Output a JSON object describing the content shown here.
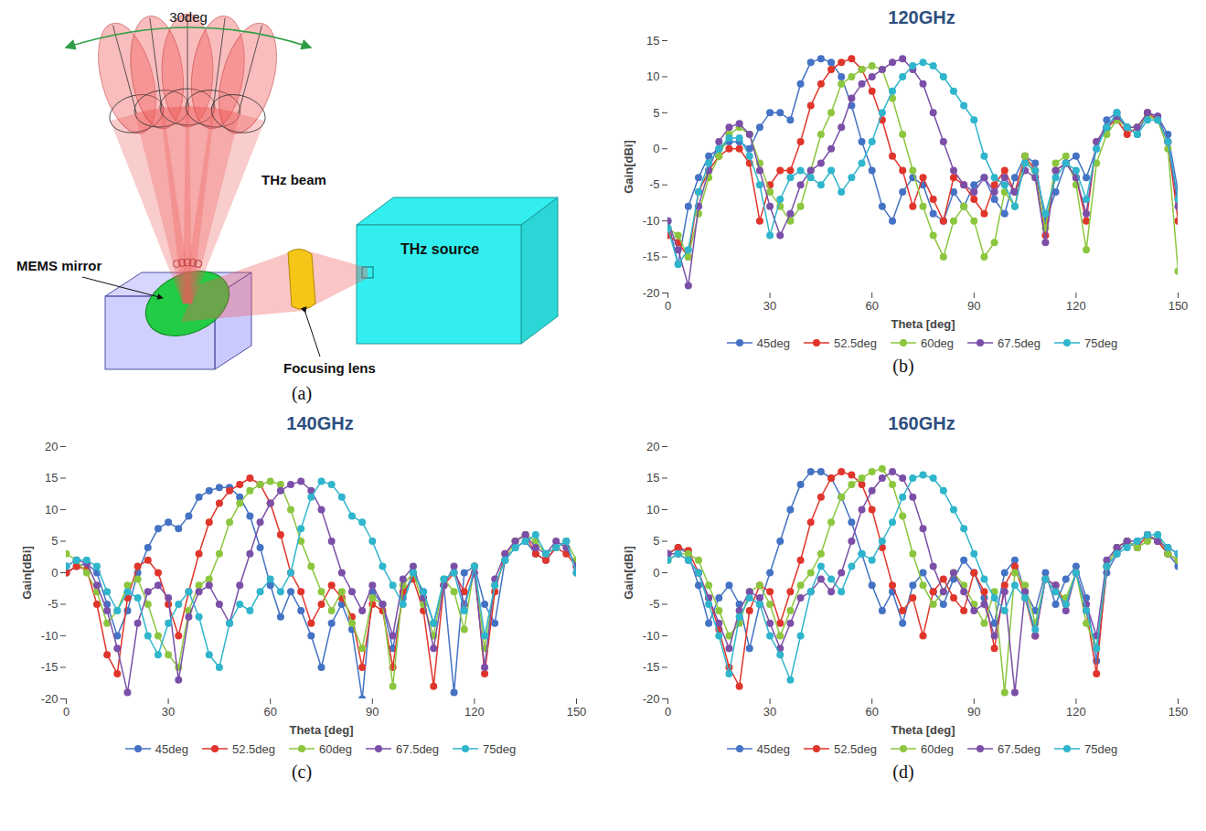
{
  "diagram": {
    "panel_label": "(a)",
    "angle_label": "30deg",
    "labels": {
      "beam": "THz beam",
      "source": "THz source",
      "mirror": "MEMS mirror",
      "lens": "Focusing lens"
    }
  },
  "chart_data": [
    {
      "type": "line",
      "panel_label": "(b)",
      "title": "120GHz",
      "x_label": "Theta [deg]",
      "y_label": "Gain[dBi]",
      "xlim": [
        0,
        150
      ],
      "xticks": [
        0,
        30,
        60,
        90,
        120,
        150
      ],
      "ylim": [
        -20,
        15
      ],
      "yticks": [
        -20,
        -15,
        -10,
        -5,
        0,
        5,
        10,
        15
      ],
      "grid": false,
      "legend": "bottom",
      "marker": "circle",
      "line_style": "solid",
      "x": [
        0,
        3,
        6,
        9,
        12,
        15,
        18,
        21,
        24,
        27,
        30,
        33,
        36,
        39,
        42,
        45,
        48,
        51,
        54,
        57,
        60,
        63,
        66,
        69,
        72,
        75,
        78,
        81,
        84,
        87,
        90,
        93,
        96,
        99,
        102,
        105,
        108,
        111,
        114,
        117,
        120,
        123,
        126,
        129,
        132,
        135,
        138,
        141,
        144,
        147,
        150
      ],
      "series": [
        {
          "name": "45deg",
          "color": "#4472c4",
          "values": [
            -10,
            -16,
            -8,
            -4,
            -1,
            0,
            1,
            1,
            0,
            3,
            5,
            5,
            4,
            9,
            12,
            12.5,
            12,
            10,
            6,
            1,
            -3,
            -8,
            -10,
            -6,
            -4,
            -5,
            -9,
            -10,
            -6,
            -8,
            -5,
            -4,
            -7,
            -9,
            -4,
            -1,
            -2,
            -10,
            -6,
            -2,
            -1,
            -4,
            0,
            4,
            5,
            3,
            2,
            5,
            4.5,
            2,
            -6
          ]
        },
        {
          "name": "52.5deg",
          "color": "#e0352b",
          "values": [
            -12,
            -13,
            -15,
            -6,
            -3,
            -1,
            0,
            0,
            -2,
            -10,
            -5,
            -3,
            -3,
            1,
            6,
            9,
            11,
            12,
            12.5,
            11,
            8,
            4,
            -1,
            -3,
            -8,
            -4,
            -7,
            -10,
            -4,
            -5,
            -7,
            -9,
            -5,
            -3,
            -6,
            -1,
            -3,
            -12,
            -3,
            -2,
            -4,
            -10,
            1,
            3,
            4,
            2,
            3,
            5,
            4,
            1,
            -10
          ]
        },
        {
          "name": "60deg",
          "color": "#8cc63e",
          "values": [
            -11,
            -12,
            -15,
            -9,
            -4,
            -1,
            2,
            3,
            2,
            -2,
            -6,
            -8,
            -10,
            -8,
            -3,
            2,
            5,
            9,
            10,
            11,
            11.5,
            11,
            7,
            2,
            -3,
            -8,
            -12,
            -15,
            -10,
            -8,
            -10,
            -15,
            -13,
            -6,
            -8,
            -1,
            -4,
            -11,
            -2,
            -1,
            -5,
            -14,
            -2,
            2,
            4,
            3,
            3,
            4.5,
            4,
            0,
            -17
          ]
        },
        {
          "name": "67.5deg",
          "color": "#7b4fa8",
          "values": [
            -10,
            -14,
            -19,
            -8,
            -3,
            1,
            3,
            3.5,
            2,
            -3,
            -8,
            -12,
            -9,
            -5,
            -3,
            -2,
            0,
            3,
            7,
            9,
            10,
            11,
            12,
            12.5,
            11,
            9,
            5,
            1,
            -3,
            -5,
            -6,
            -4,
            -6,
            -4,
            -6,
            -3,
            -4,
            -13,
            -3,
            -2,
            -4,
            -9,
            1,
            3,
            4.5,
            3,
            3,
            5,
            4.5,
            1,
            -8
          ]
        },
        {
          "name": "75deg",
          "color": "#2fb5cc",
          "values": [
            -11,
            -16,
            -14,
            -6,
            -2,
            0,
            1.5,
            1.5,
            -1,
            -5,
            -12,
            -7,
            -4,
            -3,
            -4,
            -5,
            -3,
            -6,
            -4,
            -2,
            1,
            5,
            8,
            10,
            11.5,
            12,
            11.5,
            10,
            8,
            6,
            4,
            -1,
            -4,
            -5,
            -8,
            -2,
            -3,
            -9,
            -4,
            -2,
            -3,
            -7,
            0,
            3,
            5,
            3,
            2,
            4,
            4,
            1,
            -7
          ]
        }
      ]
    },
    {
      "type": "line",
      "panel_label": "(c)",
      "title": "140GHz",
      "x_label": "Theta [deg]",
      "y_label": "Gain[dBi]",
      "xlim": [
        0,
        150
      ],
      "xticks": [
        0,
        30,
        60,
        90,
        120,
        150
      ],
      "ylim": [
        -20,
        20
      ],
      "yticks": [
        -20,
        -15,
        -10,
        -5,
        0,
        5,
        10,
        15,
        20
      ],
      "grid": false,
      "legend": "bottom",
      "marker": "circle",
      "line_style": "solid",
      "x": [
        0,
        3,
        6,
        9,
        12,
        15,
        18,
        21,
        24,
        27,
        30,
        33,
        36,
        39,
        42,
        45,
        48,
        51,
        54,
        57,
        60,
        63,
        66,
        69,
        72,
        75,
        78,
        81,
        84,
        87,
        90,
        93,
        96,
        99,
        102,
        105,
        108,
        111,
        114,
        117,
        120,
        123,
        126,
        129,
        132,
        135,
        138,
        141,
        144,
        147,
        150
      ],
      "series": [
        {
          "name": "45deg",
          "color": "#4472c4",
          "values": [
            0,
            1,
            1.5,
            0,
            -5,
            -10,
            -6,
            0,
            4,
            7,
            8,
            7,
            9,
            12,
            13,
            13.5,
            13.5,
            12,
            9,
            4,
            -2,
            -7,
            -3,
            -6,
            -10,
            -15,
            -8,
            -5,
            -9,
            -20,
            -3,
            -5,
            -12,
            -4,
            0,
            -3,
            -8,
            -2,
            -19,
            0,
            1,
            -5,
            -8,
            2,
            4,
            5,
            3,
            2,
            4,
            5,
            0
          ]
        },
        {
          "name": "52.5deg",
          "color": "#e0352b",
          "values": [
            0,
            1,
            0.5,
            -5,
            -13,
            -16,
            -4,
            1,
            2,
            0,
            -5,
            -10,
            -3,
            3,
            8,
            11,
            13,
            14,
            15,
            14,
            11,
            6,
            0,
            -3,
            -8,
            -5,
            -2,
            -4,
            -7,
            -15,
            -5,
            -6,
            -15,
            -3,
            -1,
            -6,
            -18,
            -2,
            0,
            -3,
            1,
            -16,
            -3,
            3,
            5,
            6,
            3,
            2,
            4,
            3,
            1
          ]
        },
        {
          "name": "60deg",
          "color": "#8cc63e",
          "values": [
            3,
            2,
            0,
            -3,
            -8,
            -6,
            -2,
            -1,
            -5,
            -10,
            -13,
            -15,
            -6,
            -2,
            -1,
            3,
            8,
            11,
            13,
            14,
            14.5,
            14,
            10,
            5,
            1,
            -3,
            -6,
            -3,
            -8,
            -12,
            -4,
            -5,
            -18,
            -2,
            0,
            -5,
            -10,
            -1,
            -3,
            -9,
            1,
            -12,
            -2,
            2,
            5,
            6,
            5,
            3,
            4,
            5,
            2
          ]
        },
        {
          "name": "67.5deg",
          "color": "#7b4fa8",
          "values": [
            1,
            2,
            1.5,
            -2,
            -6,
            -12,
            -19,
            -8,
            -3,
            -2,
            -4,
            -17,
            -7,
            -3,
            -2,
            -5,
            -8,
            -2,
            3,
            8,
            11,
            13,
            14,
            14.5,
            13,
            10,
            5,
            0,
            -3,
            -6,
            -2,
            -5,
            -10,
            -1,
            1,
            -4,
            -12,
            -2,
            1,
            -5,
            0,
            -15,
            -1,
            3,
            5,
            6,
            4,
            3,
            5,
            4,
            1
          ]
        },
        {
          "name": "75deg",
          "color": "#2fb5cc",
          "values": [
            1,
            2,
            2,
            1,
            -3,
            -6,
            -3,
            -4,
            -10,
            -13,
            -8,
            -5,
            -3,
            -7,
            -13,
            -15,
            -8,
            -5,
            -6,
            -3,
            -1,
            -3,
            0,
            7,
            12,
            14.5,
            14,
            12,
            9,
            8,
            5,
            1,
            -2,
            -5,
            0,
            -3,
            -8,
            -1,
            0,
            -6,
            1,
            -10,
            -2,
            2,
            4,
            5,
            6,
            3,
            4,
            5,
            0
          ]
        }
      ]
    },
    {
      "type": "line",
      "panel_label": "(d)",
      "title": "160GHz",
      "x_label": "Theta [deg]",
      "y_label": "Gain[dBi]",
      "xlim": [
        0,
        150
      ],
      "xticks": [
        0,
        30,
        60,
        90,
        120,
        150
      ],
      "ylim": [
        -20,
        20
      ],
      "yticks": [
        -20,
        -15,
        -10,
        -5,
        0,
        5,
        10,
        15,
        20
      ],
      "grid": false,
      "legend": "bottom",
      "marker": "circle",
      "line_style": "solid",
      "x": [
        0,
        3,
        6,
        9,
        12,
        15,
        18,
        21,
        24,
        27,
        30,
        33,
        36,
        39,
        42,
        45,
        48,
        51,
        54,
        57,
        60,
        63,
        66,
        69,
        72,
        75,
        78,
        81,
        84,
        87,
        90,
        93,
        96,
        99,
        102,
        105,
        108,
        111,
        114,
        117,
        120,
        123,
        126,
        129,
        132,
        135,
        138,
        141,
        144,
        147,
        150
      ],
      "series": [
        {
          "name": "45deg",
          "color": "#4472c4",
          "values": [
            3,
            4,
            3,
            -2,
            -8,
            -4,
            -2,
            -5,
            -12,
            -5,
            0,
            5,
            10,
            14,
            16,
            16,
            15,
            12,
            8,
            3,
            -2,
            -6,
            -3,
            -8,
            -2,
            0,
            -3,
            -5,
            -1,
            2,
            0,
            -4,
            -8,
            0,
            2,
            -3,
            -6,
            0,
            -5,
            -1,
            1,
            -4,
            -14,
            0,
            3,
            5,
            4,
            6,
            5,
            3,
            1
          ]
        },
        {
          "name": "52.5deg",
          "color": "#e0352b",
          "values": [
            3,
            4,
            3.5,
            0,
            -4,
            -9,
            -15,
            -18,
            -6,
            -2,
            -3,
            -8,
            -3,
            2,
            8,
            12,
            15,
            16,
            15.5,
            14,
            10,
            4,
            -2,
            -6,
            -4,
            -10,
            -3,
            -1,
            -4,
            -6,
            0,
            -3,
            -12,
            -2,
            1,
            -4,
            -10,
            -1,
            -2,
            -5,
            0,
            -6,
            -16,
            1,
            4,
            5,
            4,
            6,
            5,
            3,
            2
          ]
        },
        {
          "name": "60deg",
          "color": "#8cc63e",
          "values": [
            2,
            3,
            3,
            2,
            -2,
            -6,
            -10,
            -8,
            -3,
            -2,
            -5,
            -10,
            -6,
            -2,
            0,
            3,
            8,
            12,
            14,
            15,
            16,
            16.5,
            14,
            9,
            3,
            -2,
            -5,
            -3,
            0,
            -2,
            -5,
            -8,
            -3,
            -19,
            0,
            -2,
            -8,
            -1,
            -3,
            -4,
            0,
            -8,
            -12,
            1,
            4,
            5,
            4,
            5,
            6,
            3,
            2
          ]
        },
        {
          "name": "67.5deg",
          "color": "#7b4fa8",
          "values": [
            3,
            3,
            2,
            0,
            -4,
            -8,
            -12,
            -6,
            -3,
            -4,
            -8,
            -12,
            -8,
            -4,
            -3,
            -1,
            -3,
            0,
            5,
            10,
            13,
            15,
            16,
            15,
            12,
            7,
            1,
            -3,
            0,
            -3,
            -6,
            -5,
            -10,
            -3,
            -19,
            -3,
            -10,
            -1,
            -2,
            -6,
            0,
            -5,
            -10,
            2,
            4,
            5,
            5,
            6,
            5,
            4,
            3
          ]
        },
        {
          "name": "75deg",
          "color": "#2fb5cc",
          "values": [
            2,
            3,
            2,
            0,
            -5,
            -10,
            -16,
            -7,
            -4,
            -5,
            -10,
            -13,
            -17,
            -10,
            -3,
            1,
            -1,
            -3,
            1,
            3,
            2,
            5,
            8,
            12,
            15,
            15.5,
            15,
            13,
            10,
            7,
            3,
            -1,
            -4,
            -6,
            -2,
            -4,
            -9,
            -1,
            -3,
            -5,
            0,
            -6,
            -12,
            1,
            3,
            4,
            5,
            6,
            6,
            4,
            3
          ]
        }
      ]
    }
  ]
}
